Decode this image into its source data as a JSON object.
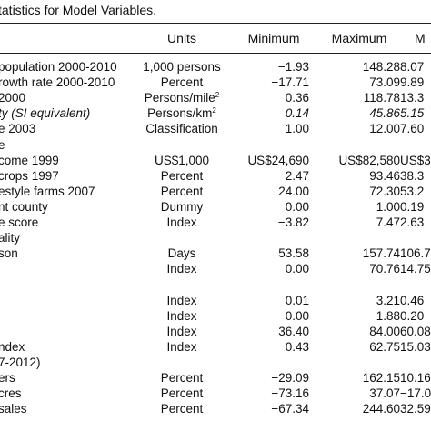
{
  "caption": "Descriptive Statistics for Model Variables.",
  "caption_visible": "tatistics for Model Variables.",
  "headers": {
    "units": "Units",
    "minimum": "Minimum",
    "maximum": "Maximum",
    "mean": "M"
  },
  "rows": [
    {
      "label": "population 2000-2010",
      "units": "1,000 persons",
      "min": "−1.93",
      "max": "148.28",
      "mean": "8.07"
    },
    {
      "label": "rowth rate 2000-2010",
      "units": "Percent",
      "min": "−17.71",
      "max": "73.09",
      "mean": "9.89"
    },
    {
      "label": "2000",
      "units": "Persons/mile",
      "units_sup": "2",
      "min": "0.36",
      "max": "118.78",
      "mean": "13.3"
    },
    {
      "label": "ty (SI equivalent)",
      "units": "Persons/km",
      "units_sup": "2",
      "min": "0.14",
      "max": "45.86",
      "mean": "5.15",
      "italic": true
    },
    {
      "label": "e 2003",
      "units": "Classification",
      "min": "1.00",
      "max": "12.00",
      "mean": "7.60"
    },
    {
      "label": "e",
      "units": "",
      "min": "",
      "max": "",
      "mean": ""
    },
    {
      "label": "come 1999",
      "units": "US$1,000",
      "min": "US$24,690",
      "max": "US$82,580",
      "mean": "US$35,"
    },
    {
      "label": "crops 1997",
      "units": "Percent",
      "min": "2.47",
      "max": "93.46",
      "mean": "38.3"
    },
    {
      "label": "estyle farms 2007",
      "units": "Percent",
      "min": "24.00",
      "max": "72.30",
      "mean": "53.2"
    },
    {
      "label": "nt county",
      "units": "Dummy",
      "min": "0.00",
      "max": "1.00",
      "mean": "0.19"
    },
    {
      "label": "e score",
      "units": "Index",
      "min": "−3.82",
      "max": "7.47",
      "mean": "2.63"
    },
    {
      "label": "ality",
      "units": "",
      "min": "",
      "max": "",
      "mean": ""
    },
    {
      "label": "son",
      "units": "Days",
      "min": "53.58",
      "max": "157.74",
      "mean": "106.7"
    },
    {
      "label": "",
      "units": "Index",
      "min": "0.00",
      "max": "70.76",
      "mean": "14.75"
    },
    {
      "label": "",
      "units": "",
      "min": "",
      "max": "",
      "mean": ""
    },
    {
      "label": "",
      "units": "Index",
      "min": "0.01",
      "max": "3.21",
      "mean": "0.46"
    },
    {
      "label": "",
      "units": "Index",
      "min": "0.00",
      "max": "1.88",
      "mean": "0.20"
    },
    {
      "label": "",
      "units": "Index",
      "min": "36.40",
      "max": "84.00",
      "mean": "60.08"
    },
    {
      "label": "ndex",
      "units": "Index",
      "min": "0.43",
      "max": "62.75",
      "mean": "15.03"
    },
    {
      "label": "7-2012)",
      "units": "",
      "min": "",
      "max": "",
      "mean": ""
    },
    {
      "label": "ers",
      "units": "Percent",
      "min": "−29.09",
      "max": "162.15",
      "mean": "10.16"
    },
    {
      "label": "cres",
      "units": "Percent",
      "min": "−73.16",
      "max": "37.07",
      "mean": "−17.0"
    },
    {
      "label": "sales",
      "units": "Percent",
      "min": "−67.34",
      "max": "244.60",
      "mean": "32.59"
    }
  ]
}
